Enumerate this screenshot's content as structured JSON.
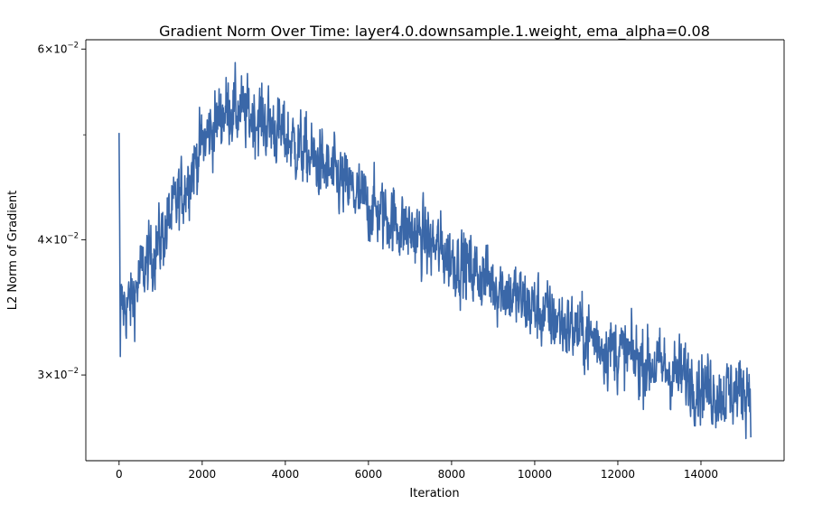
{
  "chart_data": {
    "type": "line",
    "title": "Gradient Norm Over Time: layer4.0.downsample.1.weight, ema_alpha=0.08",
    "xlabel": "Iteration",
    "ylabel": "L2 Norm of Gradient",
    "xlim": [
      -800,
      16000
    ],
    "ylim": [
      0.025,
      0.0612
    ],
    "yscale": "log",
    "grid": false,
    "legend": "none",
    "series_color": "#3a67a8",
    "x_ticks": [
      0,
      2000,
      4000,
      6000,
      8000,
      10000,
      12000,
      14000
    ],
    "x_tick_labels": [
      "0",
      "2000",
      "4000",
      "6000",
      "8000",
      "10000",
      "12000",
      "14000"
    ],
    "y_ticks": [
      {
        "value": 0.06,
        "mantissa": "6",
        "base": "10",
        "exp": "−2"
      },
      {
        "value": 0.04,
        "mantissa": "4",
        "base": "10",
        "exp": "−2"
      },
      {
        "value": 0.03,
        "mantissa": "3",
        "base": "10",
        "exp": "−2"
      }
    ],
    "y_minor_ticks": [
      0.05
    ],
    "series": [
      {
        "name": "L2 Norm of Gradient",
        "x_start": 0,
        "x_end": 15200,
        "initial_spike": 0.0502,
        "trend_points": [
          [
            0,
            0.0345
          ],
          [
            300,
            0.035
          ],
          [
            500,
            0.037
          ],
          [
            1000,
            0.04
          ],
          [
            1500,
            0.044
          ],
          [
            2000,
            0.049
          ],
          [
            2600,
            0.053
          ],
          [
            3500,
            0.0515
          ],
          [
            4500,
            0.048
          ],
          [
            6000,
            0.043
          ],
          [
            8000,
            0.0385
          ],
          [
            10000,
            0.0345
          ],
          [
            12000,
            0.0315
          ],
          [
            13500,
            0.03
          ],
          [
            14500,
            0.0288
          ],
          [
            15200,
            0.0292
          ]
        ],
        "noise_amplitude": 0.035,
        "min": 0.0256,
        "max": 0.0583
      }
    ]
  }
}
